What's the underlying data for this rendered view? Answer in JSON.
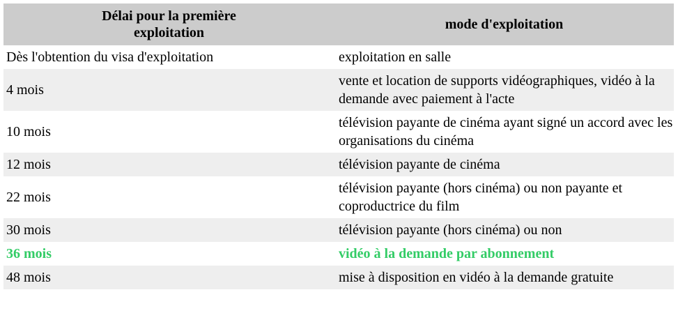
{
  "headers": {
    "delay": "Délai pour la première exploitation",
    "mode": "mode d'exploitation"
  },
  "highlight_color": "#33cc66",
  "rows": [
    {
      "delay": "Dès l'obtention du visa d'exploitation",
      "mode": "exploitation en salle"
    },
    {
      "delay": "4 mois",
      "mode": "vente et location de supports vidéographiques, vidéo à la demande avec paiement à l'acte"
    },
    {
      "delay": "10 mois",
      "mode": "télévision payante de cinéma ayant signé un accord avec les organisations du cinéma"
    },
    {
      "delay": "12 mois",
      "mode": "télévision payante de cinéma"
    },
    {
      "delay": "22 mois",
      "mode": "télévision payante (hors cinéma) ou non payante et coproductrice du film"
    },
    {
      "delay": "30 mois",
      "mode": "télévision payante (hors cinéma) ou non"
    },
    {
      "delay": "36 mois",
      "mode": "vidéo à la demande par abonnement",
      "highlighted": true
    },
    {
      "delay": "48 mois",
      "mode": "mise à disposition en vidéo à la demande gratuite"
    }
  ]
}
